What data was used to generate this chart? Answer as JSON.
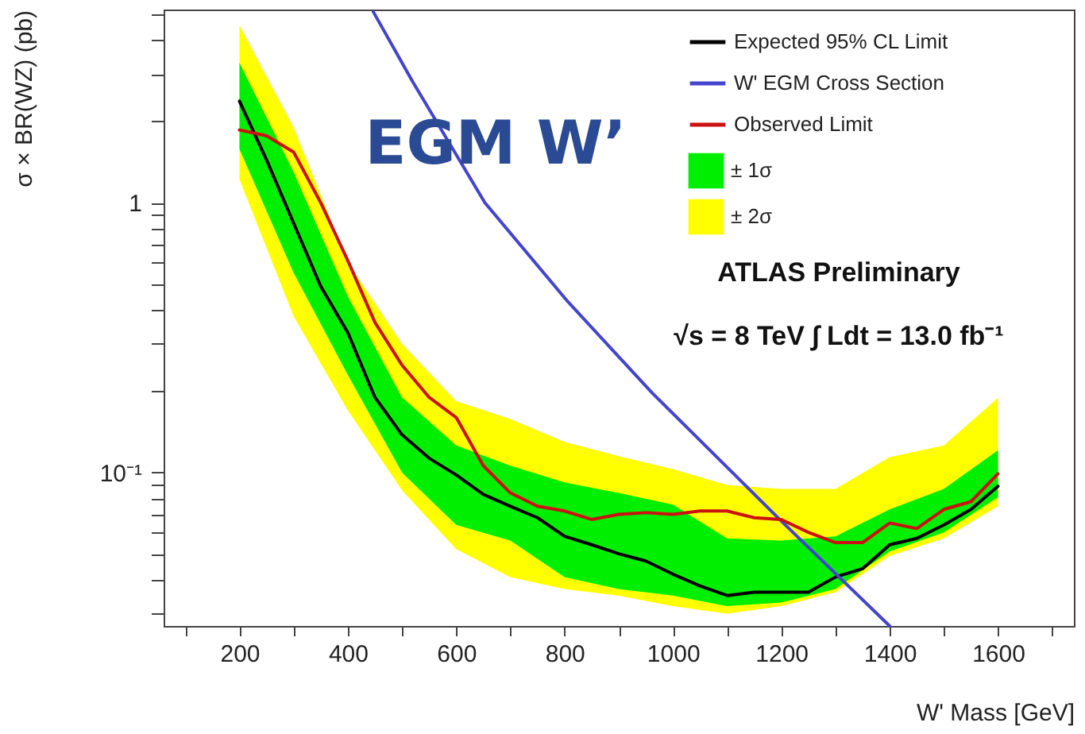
{
  "chart_data": {
    "type": "line",
    "xlabel": "W' Mass [GeV]",
    "ylabel": "σ × BR(WZ) (pb)",
    "log": "y",
    "grid": false,
    "legend": "top right",
    "marker": "none",
    "line_style": "solid",
    "xlim": [
      60,
      1740
    ],
    "xticks": [
      {
        "value": 100,
        "label": null
      },
      200,
      {
        "value": 300,
        "label": null
      },
      400,
      {
        "value": 500,
        "label": null
      },
      600,
      {
        "value": 700,
        "label": null
      },
      800,
      {
        "value": 900,
        "label": null
      },
      1000,
      {
        "value": 1100,
        "label": null
      },
      1200,
      {
        "value": 1300,
        "label": null
      },
      1400,
      {
        "value": 1500,
        "label": null
      },
      1600,
      {
        "value": 1700,
        "label": null
      }
    ],
    "ylim": [
      0.027,
      5.2
    ],
    "yticks": [
      {
        "value": 0.03,
        "label": null
      },
      {
        "value": 0.04,
        "label": null
      },
      {
        "value": 0.05,
        "label": null
      },
      {
        "value": 0.06,
        "label": null
      },
      {
        "value": 0.07,
        "label": null
      },
      {
        "value": 0.08,
        "label": null
      },
      {
        "value": 0.09,
        "label": null
      },
      {
        "value": 0.1,
        "label": "10⁻¹"
      },
      {
        "value": 0.2,
        "label": null
      },
      {
        "value": 0.3,
        "label": null
      },
      {
        "value": 0.4,
        "label": null
      },
      {
        "value": 0.5,
        "label": null
      },
      {
        "value": 0.6,
        "label": null
      },
      {
        "value": 0.7,
        "label": null
      },
      {
        "value": 0.8,
        "label": null
      },
      {
        "value": 0.9,
        "label": null
      },
      1,
      {
        "value": 2,
        "label": null
      },
      {
        "value": 3,
        "label": null
      },
      {
        "value": 4,
        "label": null
      },
      {
        "value": 5,
        "label": null
      }
    ],
    "annotations": [
      "EGM W’",
      "ATLAS Preliminary",
      "√s = 8 TeV ∫ Ldt = 13.0 fb⁻¹"
    ],
    "series": [
      {
        "name": "Expected 95% CL Limit",
        "type": "line",
        "color": "#000000",
        "x": [
          200,
          250,
          300,
          350,
          400,
          450,
          500,
          550,
          600,
          650,
          700,
          750,
          800,
          850,
          900,
          950,
          1000,
          1050,
          1100,
          1150,
          1200,
          1250,
          1300,
          1350,
          1400,
          1450,
          1500,
          1550,
          1600
        ],
        "values": [
          2.38,
          1.44,
          0.84,
          0.49,
          0.33,
          0.19,
          0.138,
          0.113,
          0.098,
          0.083,
          0.075,
          0.068,
          0.058,
          0.054,
          0.05,
          0.047,
          0.042,
          0.038,
          0.035,
          0.036,
          0.036,
          0.036,
          0.041,
          0.044,
          0.054,
          0.057,
          0.064,
          0.073,
          0.089
        ]
      },
      {
        "name": "± 1σ",
        "type": "area",
        "color": "#00ee00",
        "x": [
          200,
          300,
          400,
          500,
          600,
          700,
          800,
          900,
          1000,
          1100,
          1200,
          1300,
          1400,
          1500,
          1600
        ],
        "values": [
          null,
          null,
          null,
          null,
          null,
          null,
          null,
          null,
          null,
          null,
          null,
          null,
          null,
          null,
          null
        ],
        "lower": [
          1.58,
          0.55,
          0.23,
          0.1,
          0.064,
          0.056,
          0.041,
          0.037,
          0.035,
          0.032,
          0.033,
          0.037,
          0.051,
          0.06,
          0.081
        ],
        "upper": [
          3.3,
          1.3,
          0.45,
          0.19,
          0.126,
          0.106,
          0.092,
          0.084,
          0.076,
          0.057,
          0.056,
          0.058,
          0.073,
          0.087,
          0.121
        ]
      },
      {
        "name": "± 2σ",
        "type": "area",
        "color": "#ffff00",
        "x": [
          200,
          300,
          400,
          500,
          600,
          700,
          800,
          900,
          1000,
          1100,
          1200,
          1300,
          1400,
          1500,
          1600
        ],
        "values": [
          null,
          null,
          null,
          null,
          null,
          null,
          null,
          null,
          null,
          null,
          null,
          null,
          null,
          null,
          null
        ],
        "lower": [
          1.22,
          0.38,
          0.17,
          0.086,
          0.052,
          0.041,
          0.037,
          0.035,
          0.032,
          0.03,
          0.032,
          0.036,
          0.049,
          0.057,
          0.075
        ],
        "upper": [
          4.55,
          1.9,
          0.6,
          0.3,
          0.184,
          0.158,
          0.13,
          0.115,
          0.103,
          0.09,
          0.087,
          0.087,
          0.114,
          0.126,
          0.189
        ]
      },
      {
        "name": "W' EGM Cross Section",
        "type": "line",
        "color": "#4444cc",
        "x": [
          447,
          520,
          653,
          806,
          962,
          1197,
          1400
        ],
        "values": [
          5.1,
          2.8,
          1.0,
          0.43,
          0.197,
          0.067,
          0.027
        ]
      },
      {
        "name": "Observed Limit",
        "type": "line",
        "color": "#cc1111",
        "x": [
          200,
          250,
          300,
          350,
          400,
          450,
          500,
          550,
          600,
          650,
          700,
          750,
          800,
          850,
          900,
          950,
          1000,
          1050,
          1100,
          1150,
          1200,
          1250,
          1300,
          1350,
          1400,
          1450,
          1500,
          1550,
          1600
        ],
        "values": [
          1.86,
          1.77,
          1.54,
          1.0,
          0.61,
          0.36,
          0.25,
          0.19,
          0.16,
          0.106,
          0.084,
          0.075,
          0.072,
          0.067,
          0.07,
          0.071,
          0.07,
          0.072,
          0.072,
          0.068,
          0.067,
          0.06,
          0.055,
          0.055,
          0.065,
          0.062,
          0.073,
          0.078,
          0.099
        ]
      }
    ]
  }
}
